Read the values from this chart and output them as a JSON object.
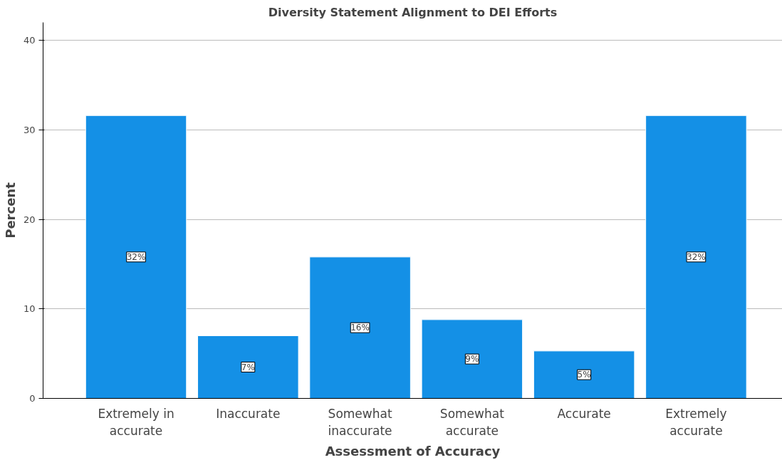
{
  "chart_data": {
    "type": "bar",
    "title": "Diversity Statement Alignment to DEI Efforts",
    "xlabel": "Assessment of Accuracy",
    "ylabel": "Percent",
    "categories": [
      "Extremely in accurate",
      "Inaccurate",
      "Somewhat inaccurate",
      "Somewhat accurate",
      "Accurate",
      "Extremely accurate"
    ],
    "values": [
      31.6,
      7.0,
      15.8,
      8.8,
      5.3,
      31.6
    ],
    "value_labels": [
      "32%",
      "7%",
      "16%",
      "9%",
      "5%",
      "32%"
    ],
    "color": "#1490e6",
    "ylim": [
      0,
      42
    ],
    "yticks": [
      0,
      10,
      20,
      30,
      40
    ],
    "grid": "y"
  }
}
